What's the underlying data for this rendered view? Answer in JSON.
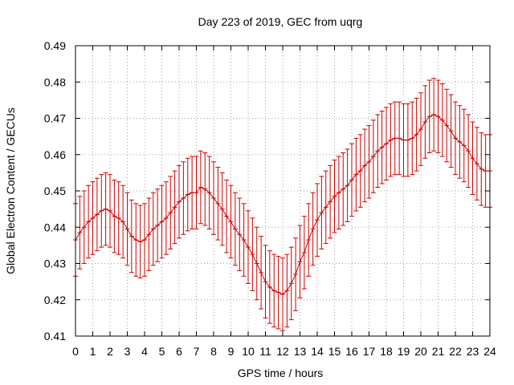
{
  "chart_data": {
    "type": "line",
    "title": "Day 223 of 2019, GEC from uqrg",
    "xlabel": "GPS time / hours",
    "ylabel": "Global Electron Content / GECUs",
    "xlim": [
      0,
      24
    ],
    "ylim": [
      0.41,
      0.49
    ],
    "xticks": [
      "0",
      "1",
      "2",
      "3",
      "4",
      "5",
      "6",
      "7",
      "8",
      "9",
      "10",
      "11",
      "12",
      "13",
      "14",
      "15",
      "16",
      "17",
      "18",
      "19",
      "20",
      "21",
      "22",
      "23",
      "24"
    ],
    "yticks": [
      "0.41",
      "0.42",
      "0.43",
      "0.44",
      "0.45",
      "0.46",
      "0.47",
      "0.48",
      "0.49"
    ],
    "grid": true,
    "legend": "none",
    "error_bar_halfwidth": 0.01,
    "colors": {
      "series": "#cc0000",
      "grid": "#a0a0a0",
      "axis": "#000000"
    },
    "series": [
      {
        "x": [
          0,
          0.25,
          0.5,
          0.75,
          1,
          1.25,
          1.5,
          1.75,
          2,
          2.25,
          2.5,
          2.75,
          3,
          3.25,
          3.5,
          3.75,
          4,
          4.25,
          4.5,
          4.75,
          5,
          5.25,
          5.5,
          5.75,
          6,
          6.25,
          6.5,
          6.75,
          7,
          7.25,
          7.5,
          7.75,
          8,
          8.25,
          8.5,
          8.75,
          9,
          9.25,
          9.5,
          9.75,
          10,
          10.25,
          10.5,
          10.75,
          11,
          11.25,
          11.5,
          11.75,
          12,
          12.25,
          12.5,
          12.75,
          13,
          13.25,
          13.5,
          13.75,
          14,
          14.25,
          14.5,
          14.75,
          15,
          15.25,
          15.5,
          15.75,
          16,
          16.25,
          16.5,
          16.75,
          17,
          17.25,
          17.5,
          17.75,
          18,
          18.25,
          18.5,
          18.75,
          19,
          19.25,
          19.5,
          19.75,
          20,
          20.25,
          20.5,
          20.75,
          21,
          21.25,
          21.5,
          21.75,
          22,
          22.25,
          22.5,
          22.75,
          23,
          23.25,
          23.5,
          23.75,
          24
        ],
        "y": [
          0.4365,
          0.4385,
          0.44,
          0.4415,
          0.4425,
          0.4435,
          0.4445,
          0.445,
          0.4445,
          0.443,
          0.4425,
          0.4415,
          0.4395,
          0.4375,
          0.4365,
          0.436,
          0.4365,
          0.438,
          0.4395,
          0.4405,
          0.4415,
          0.4425,
          0.444,
          0.4455,
          0.447,
          0.448,
          0.449,
          0.4495,
          0.4495,
          0.451,
          0.4505,
          0.4495,
          0.448,
          0.4465,
          0.445,
          0.443,
          0.4415,
          0.4395,
          0.438,
          0.4365,
          0.4345,
          0.4325,
          0.43,
          0.4275,
          0.425,
          0.4235,
          0.4225,
          0.422,
          0.4215,
          0.4225,
          0.4245,
          0.427,
          0.4305,
          0.433,
          0.4365,
          0.4395,
          0.442,
          0.444,
          0.4455,
          0.447,
          0.4485,
          0.4495,
          0.4505,
          0.4515,
          0.453,
          0.4545,
          0.4555,
          0.457,
          0.458,
          0.4595,
          0.461,
          0.462,
          0.463,
          0.464,
          0.4645,
          0.4645,
          0.464,
          0.464,
          0.4645,
          0.4655,
          0.467,
          0.469,
          0.4705,
          0.471,
          0.4705,
          0.4695,
          0.468,
          0.4665,
          0.4645,
          0.4635,
          0.4625,
          0.461,
          0.459,
          0.4575,
          0.456,
          0.4555,
          0.4555
        ]
      }
    ]
  }
}
